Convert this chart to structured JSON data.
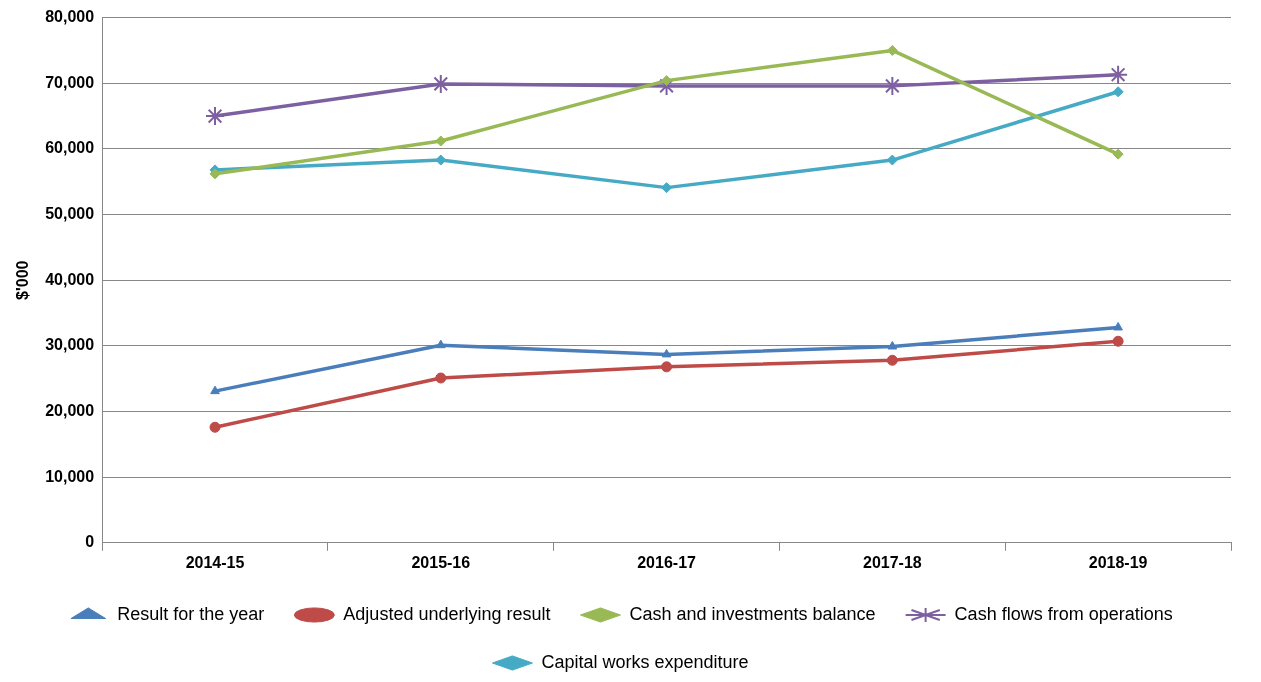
{
  "chart_data": {
    "type": "line",
    "ylabel": "$'000",
    "categories": [
      "2014-15",
      "2015-16",
      "2016-17",
      "2017-18",
      "2018-19"
    ],
    "series": [
      {
        "name": "Result for the year",
        "color": "#4a7ebb",
        "marker": "triangle",
        "values": [
          23100,
          30100,
          28700,
          29900,
          32800
        ]
      },
      {
        "name": "Adjusted underlying result",
        "color": "#be4b48",
        "marker": "circle",
        "values": [
          17600,
          25100,
          26800,
          27800,
          30700
        ]
      },
      {
        "name": "Cash and investments balance",
        "color": "#98b954",
        "marker": "diamond",
        "values": [
          56200,
          61200,
          70400,
          75000,
          59200
        ]
      },
      {
        "name": "Cash flows from operations",
        "color": "#7d60a0",
        "marker": "cross",
        "values": [
          65000,
          69900,
          69600,
          69600,
          71300
        ]
      },
      {
        "name": "Capital works expenditure",
        "color": "#46aac5",
        "marker": "diamond",
        "values": [
          56800,
          58300,
          54100,
          58300,
          68700
        ]
      }
    ],
    "ylim": [
      0,
      80000
    ],
    "yticks": [
      {
        "value": 0,
        "label": "0"
      },
      {
        "value": 10000,
        "label": "10,000"
      },
      {
        "value": 20000,
        "label": "20,000"
      },
      {
        "value": 30000,
        "label": "30,000"
      },
      {
        "value": 40000,
        "label": "40,000"
      },
      {
        "value": 50000,
        "label": "50,000"
      },
      {
        "value": 60000,
        "label": "60,000"
      },
      {
        "value": 70000,
        "label": "70,000"
      },
      {
        "value": 80000,
        "label": "80,000"
      }
    ],
    "grid": "y",
    "legend": "bottom",
    "line_style": "solid"
  }
}
